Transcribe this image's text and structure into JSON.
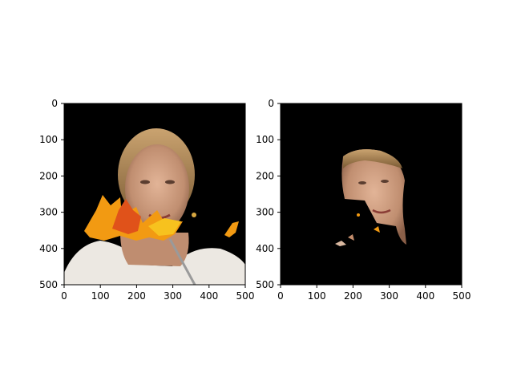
{
  "chart_data": [
    {
      "type": "heatmap",
      "panel": "left",
      "description_in_pixels": "photo image of a woman with autumn leaf overlay on black background",
      "xlim": [
        0,
        500
      ],
      "ylim": [
        500,
        0
      ],
      "xticks": [
        0,
        100,
        200,
        300,
        400,
        500
      ],
      "yticks": [
        0,
        100,
        200,
        300,
        400,
        500
      ]
    },
    {
      "type": "heatmap",
      "panel": "right",
      "description_in_pixels": "segmented face region on black background",
      "xlim": [
        0,
        500
      ],
      "ylim": [
        500,
        0
      ],
      "xticks": [
        0,
        100,
        200,
        300,
        400,
        500
      ],
      "yticks": [
        0,
        100,
        200,
        300,
        400,
        500
      ]
    }
  ],
  "colors": {
    "background": "#000000",
    "skin": "#c99a7c",
    "hair": "#b08a55",
    "leaf_orange": "#f29a12",
    "leaf_red": "#e0521a",
    "leaf_yellow": "#f7c21e",
    "dress": "#ece8e2"
  }
}
